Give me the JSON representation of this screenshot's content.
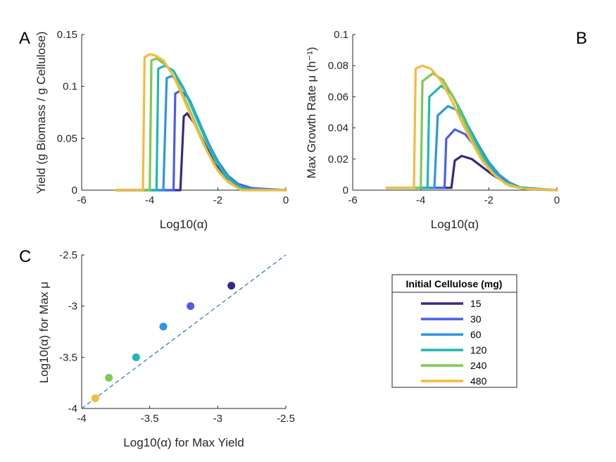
{
  "colors": {
    "15": "#352a87",
    "30": "#4a5ee8",
    "60": "#2c96e0",
    "120": "#1fb8b2",
    "240": "#7dc951",
    "480": "#f7ba3d",
    "diagonal": "#1f77b4",
    "axis": "#262626"
  },
  "chart_data": [
    {
      "panel_label": "A",
      "type": "line",
      "xlabel": "Log10(α)",
      "ylabel": "Yield (g Biomass / g Cellulose)",
      "xlim": [
        -6,
        0
      ],
      "ylim": [
        0,
        0.15
      ],
      "xticks": [
        "-6",
        "-4",
        "-2",
        "0"
      ],
      "yticks": [
        "0",
        "0.05",
        "0.1",
        "0.15"
      ],
      "grid": false,
      "series": [
        {
          "name": "15",
          "points": [
            [
              -5,
              0
            ],
            [
              -3.1,
              0
            ],
            [
              -3.0,
              0.071
            ],
            [
              -2.9,
              0.074
            ],
            [
              -2.7,
              0.065
            ],
            [
              -2.4,
              0.046
            ],
            [
              -2.1,
              0.026
            ],
            [
              -1.8,
              0.013
            ],
            [
              -1.5,
              0.006
            ],
            [
              -1.2,
              0.003
            ],
            [
              -0.8,
              0.001
            ],
            [
              0,
              0
            ]
          ]
        },
        {
          "name": "30",
          "points": [
            [
              -5,
              0
            ],
            [
              -3.3,
              0
            ],
            [
              -3.25,
              0.093
            ],
            [
              -3.1,
              0.096
            ],
            [
              -2.9,
              0.09
            ],
            [
              -2.6,
              0.07
            ],
            [
              -2.3,
              0.047
            ],
            [
              -2.0,
              0.028
            ],
            [
              -1.7,
              0.014
            ],
            [
              -1.4,
              0.006
            ],
            [
              -1.0,
              0.002
            ],
            [
              0,
              0
            ]
          ]
        },
        {
          "name": "60",
          "points": [
            [
              -5,
              0
            ],
            [
              -3.6,
              0
            ],
            [
              -3.5,
              0.108
            ],
            [
              -3.35,
              0.11
            ],
            [
              -3.1,
              0.103
            ],
            [
              -2.8,
              0.085
            ],
            [
              -2.5,
              0.062
            ],
            [
              -2.2,
              0.04
            ],
            [
              -1.9,
              0.022
            ],
            [
              -1.6,
              0.01
            ],
            [
              -1.3,
              0.003
            ],
            [
              -1.0,
              0.001
            ],
            [
              0,
              0
            ]
          ]
        },
        {
          "name": "120",
          "points": [
            [
              -5,
              0
            ],
            [
              -3.8,
              0
            ],
            [
              -3.75,
              0.117
            ],
            [
              -3.55,
              0.12
            ],
            [
              -3.3,
              0.115
            ],
            [
              -3.0,
              0.098
            ],
            [
              -2.7,
              0.075
            ],
            [
              -2.4,
              0.052
            ],
            [
              -2.1,
              0.031
            ],
            [
              -1.8,
              0.015
            ],
            [
              -1.5,
              0.005
            ],
            [
              -1.2,
              0.001
            ],
            [
              0,
              0
            ]
          ]
        },
        {
          "name": "240",
          "points": [
            [
              -5,
              0
            ],
            [
              -4.0,
              0
            ],
            [
              -3.95,
              0.125
            ],
            [
              -3.8,
              0.127
            ],
            [
              -3.5,
              0.12
            ],
            [
              -3.2,
              0.105
            ],
            [
              -2.9,
              0.083
            ],
            [
              -2.6,
              0.06
            ],
            [
              -2.3,
              0.037
            ],
            [
              -2.0,
              0.019
            ],
            [
              -1.7,
              0.008
            ],
            [
              -1.4,
              0.002
            ],
            [
              -1.2,
              0
            ],
            [
              0,
              0
            ]
          ]
        },
        {
          "name": "480",
          "points": [
            [
              -5,
              0
            ],
            [
              -4.2,
              0
            ],
            [
              -4.15,
              0.128
            ],
            [
              -4.0,
              0.131
            ],
            [
              -3.85,
              0.13
            ],
            [
              -3.6,
              0.125
            ],
            [
              -3.3,
              0.11
            ],
            [
              -3.0,
              0.088
            ],
            [
              -2.7,
              0.065
            ],
            [
              -2.4,
              0.043
            ],
            [
              -2.1,
              0.024
            ],
            [
              -1.8,
              0.011
            ],
            [
              -1.5,
              0.004
            ],
            [
              -1.3,
              0
            ],
            [
              0,
              0
            ]
          ]
        }
      ]
    },
    {
      "panel_label": "B",
      "type": "line",
      "xlabel": "Log10(α)",
      "ylabel": "Max Growth Rate μ (h⁻¹)",
      "xlim": [
        -6,
        0
      ],
      "ylim": [
        0,
        0.1
      ],
      "xticks": [
        "-6",
        "-4",
        "-2",
        "0"
      ],
      "yticks": [
        "0",
        "0.02",
        "0.04",
        "0.06",
        "0.08",
        "0.1"
      ],
      "grid": false,
      "series": [
        {
          "name": "15",
          "points": [
            [
              -5,
              0.0015
            ],
            [
              -3.1,
              0.0015
            ],
            [
              -3.0,
              0.019
            ],
            [
              -2.8,
              0.022
            ],
            [
              -2.5,
              0.02
            ],
            [
              -2.2,
              0.015
            ],
            [
              -1.9,
              0.01
            ],
            [
              -1.6,
              0.006
            ],
            [
              -1.3,
              0.003
            ],
            [
              -1.0,
              0.001
            ],
            [
              0,
              0
            ]
          ]
        },
        {
          "name": "30",
          "points": [
            [
              -5,
              0.0015
            ],
            [
              -3.3,
              0.0015
            ],
            [
              -3.25,
              0.033
            ],
            [
              -3.0,
              0.039
            ],
            [
              -2.7,
              0.036
            ],
            [
              -2.4,
              0.028
            ],
            [
              -2.1,
              0.019
            ],
            [
              -1.8,
              0.012
            ],
            [
              -1.5,
              0.006
            ],
            [
              -1.2,
              0.002
            ],
            [
              -0.8,
              0.0005
            ],
            [
              0,
              0
            ]
          ]
        },
        {
          "name": "60",
          "points": [
            [
              -5,
              0.0015
            ],
            [
              -3.6,
              0.0015
            ],
            [
              -3.5,
              0.048
            ],
            [
              -3.2,
              0.054
            ],
            [
              -2.9,
              0.051
            ],
            [
              -2.6,
              0.041
            ],
            [
              -2.3,
              0.029
            ],
            [
              -2.0,
              0.018
            ],
            [
              -1.7,
              0.01
            ],
            [
              -1.4,
              0.005
            ],
            [
              -1.0,
              0.001
            ],
            [
              0,
              0
            ]
          ]
        },
        {
          "name": "120",
          "points": [
            [
              -5,
              0.0015
            ],
            [
              -3.8,
              0.0015
            ],
            [
              -3.75,
              0.06
            ],
            [
              -3.4,
              0.067
            ],
            [
              -3.1,
              0.062
            ],
            [
              -2.8,
              0.05
            ],
            [
              -2.5,
              0.036
            ],
            [
              -2.2,
              0.023
            ],
            [
              -1.9,
              0.013
            ],
            [
              -1.6,
              0.006
            ],
            [
              -1.2,
              0.002
            ],
            [
              0,
              0
            ]
          ]
        },
        {
          "name": "240",
          "points": [
            [
              -5,
              0.0015
            ],
            [
              -4.0,
              0.0015
            ],
            [
              -3.95,
              0.07
            ],
            [
              -3.65,
              0.075
            ],
            [
              -3.35,
              0.071
            ],
            [
              -3.0,
              0.058
            ],
            [
              -2.7,
              0.043
            ],
            [
              -2.4,
              0.029
            ],
            [
              -2.1,
              0.017
            ],
            [
              -1.8,
              0.009
            ],
            [
              -1.4,
              0.003
            ],
            [
              -1.0,
              0.001
            ],
            [
              0,
              0
            ]
          ]
        },
        {
          "name": "480",
          "points": [
            [
              -5,
              0.0015
            ],
            [
              -4.2,
              0.0015
            ],
            [
              -4.15,
              0.078
            ],
            [
              -3.95,
              0.08
            ],
            [
              -3.7,
              0.078
            ],
            [
              -3.4,
              0.07
            ],
            [
              -3.1,
              0.058
            ],
            [
              -2.8,
              0.044
            ],
            [
              -2.5,
              0.031
            ],
            [
              -2.2,
              0.019
            ],
            [
              -1.9,
              0.011
            ],
            [
              -1.5,
              0.004
            ],
            [
              -1.0,
              0.001
            ],
            [
              0,
              0
            ]
          ]
        }
      ]
    },
    {
      "panel_label": "C",
      "type": "scatter",
      "xlabel": "Log10(α) for Max Yield",
      "ylabel": "Log10(α) for Max μ",
      "xlim": [
        -4,
        -2.5
      ],
      "ylim": [
        -4,
        -2.5
      ],
      "xticks": [
        "-4",
        "-3.5",
        "-3",
        "-2.5"
      ],
      "yticks": [
        "-4",
        "-3.5",
        "-3",
        "-2.5"
      ],
      "grid": false,
      "reference_line": "y = x (dashed)",
      "points": [
        {
          "series": "15",
          "x": -2.9,
          "y": -2.8
        },
        {
          "series": "30",
          "x": -3.2,
          "y": -3.0
        },
        {
          "series": "60",
          "x": -3.4,
          "y": -3.2
        },
        {
          "series": "120",
          "x": -3.6,
          "y": -3.5
        },
        {
          "series": "240",
          "x": -3.8,
          "y": -3.7
        },
        {
          "series": "480",
          "x": -3.9,
          "y": -3.9
        }
      ]
    }
  ],
  "legend": {
    "title": "Initial Cellulose (mg)",
    "entries": [
      "15",
      "30",
      "60",
      "120",
      "240",
      "480"
    ],
    "placement": "right of panel C"
  }
}
